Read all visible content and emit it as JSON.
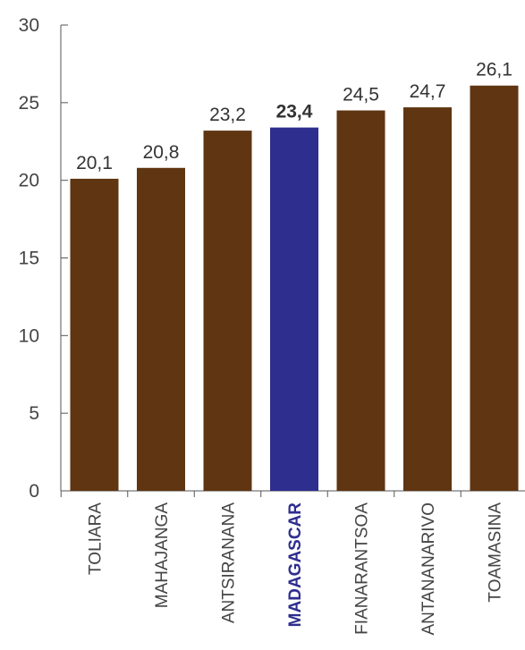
{
  "chart_data": {
    "type": "bar",
    "categories": [
      "TOLIARA",
      "MAHAJANGA",
      "ANTSIRANANA",
      "MADAGASCAR",
      "FIANARANTSOA",
      "ANTANANARIVO",
      "TOAMASINA"
    ],
    "values": [
      20.1,
      20.8,
      23.2,
      23.4,
      24.5,
      24.7,
      26.1
    ],
    "value_labels": [
      "20,1",
      "20,8",
      "23,2",
      "23,4",
      "24,5",
      "24,7",
      "26,1"
    ],
    "highlight_category": "MADAGASCAR",
    "ylim": [
      0,
      30
    ],
    "yticks": [
      0,
      5,
      10,
      15,
      20,
      25,
      30
    ],
    "ytick_labels": [
      "0",
      "5",
      "10",
      "15",
      "20",
      "25",
      "30"
    ],
    "title": "",
    "xlabel": "",
    "ylabel": "",
    "grid": false,
    "colors": {
      "bar": "#5f3512",
      "highlight_bar": "#2e2e8f",
      "axis": "#555555"
    }
  }
}
